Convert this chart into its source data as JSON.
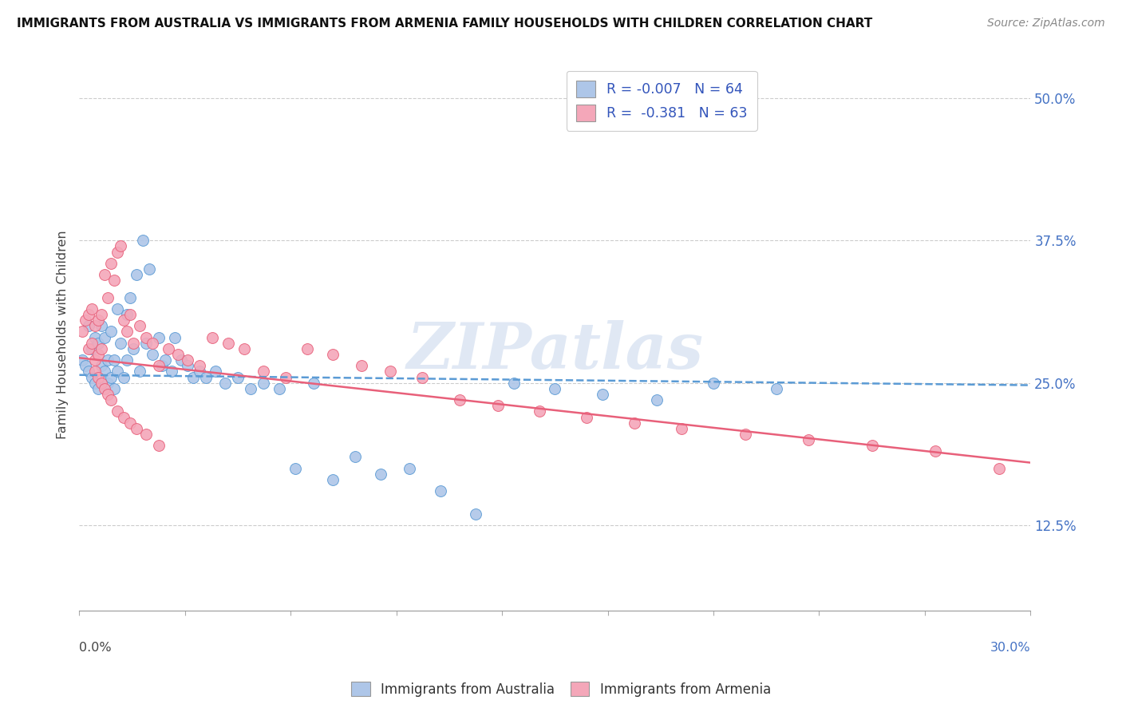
{
  "title": "IMMIGRANTS FROM AUSTRALIA VS IMMIGRANTS FROM ARMENIA FAMILY HOUSEHOLDS WITH CHILDREN CORRELATION CHART",
  "source": "Source: ZipAtlas.com",
  "ylabel": "Family Households with Children",
  "ytick_values": [
    0.125,
    0.25,
    0.375,
    0.5
  ],
  "ytick_labels": [
    "12.5%",
    "25.0%",
    "37.5%",
    "50.0%"
  ],
  "xlim": [
    0.0,
    0.3
  ],
  "ylim": [
    0.05,
    0.535
  ],
  "color_australia": "#aec6e8",
  "color_armenia": "#f4a7b9",
  "line_color_australia": "#5b9bd5",
  "line_color_armenia": "#e8607a",
  "watermark": "ZIPatlas",
  "legend_line1": "R = -0.007   N = 64",
  "legend_line2": "R =  -0.381   N = 63",
  "aus_trend_x": [
    0.0,
    0.3
  ],
  "aus_trend_y": [
    0.257,
    0.248
  ],
  "arm_trend_x": [
    0.0,
    0.3
  ],
  "arm_trend_y": [
    0.272,
    0.18
  ],
  "australia_x": [
    0.001,
    0.002,
    0.003,
    0.003,
    0.004,
    0.004,
    0.005,
    0.005,
    0.006,
    0.006,
    0.007,
    0.007,
    0.008,
    0.008,
    0.009,
    0.009,
    0.01,
    0.01,
    0.011,
    0.011,
    0.012,
    0.012,
    0.013,
    0.014,
    0.015,
    0.015,
    0.016,
    0.017,
    0.018,
    0.019,
    0.02,
    0.021,
    0.022,
    0.023,
    0.025,
    0.026,
    0.027,
    0.029,
    0.03,
    0.032,
    0.034,
    0.036,
    0.038,
    0.04,
    0.043,
    0.046,
    0.05,
    0.054,
    0.058,
    0.063,
    0.068,
    0.074,
    0.08,
    0.087,
    0.095,
    0.104,
    0.114,
    0.125,
    0.137,
    0.15,
    0.165,
    0.182,
    0.2,
    0.22
  ],
  "australia_y": [
    0.27,
    0.265,
    0.3,
    0.26,
    0.28,
    0.255,
    0.29,
    0.25,
    0.285,
    0.245,
    0.3,
    0.265,
    0.29,
    0.26,
    0.27,
    0.25,
    0.295,
    0.255,
    0.27,
    0.245,
    0.315,
    0.26,
    0.285,
    0.255,
    0.31,
    0.27,
    0.325,
    0.28,
    0.345,
    0.26,
    0.375,
    0.285,
    0.35,
    0.275,
    0.29,
    0.265,
    0.27,
    0.26,
    0.29,
    0.27,
    0.265,
    0.255,
    0.26,
    0.255,
    0.26,
    0.25,
    0.255,
    0.245,
    0.25,
    0.245,
    0.175,
    0.25,
    0.165,
    0.185,
    0.17,
    0.175,
    0.155,
    0.135,
    0.25,
    0.245,
    0.24,
    0.235,
    0.25,
    0.245
  ],
  "armenia_x": [
    0.001,
    0.002,
    0.003,
    0.003,
    0.004,
    0.004,
    0.005,
    0.005,
    0.006,
    0.006,
    0.007,
    0.007,
    0.008,
    0.009,
    0.01,
    0.011,
    0.012,
    0.013,
    0.014,
    0.015,
    0.016,
    0.017,
    0.019,
    0.021,
    0.023,
    0.025,
    0.028,
    0.031,
    0.034,
    0.038,
    0.042,
    0.047,
    0.052,
    0.058,
    0.065,
    0.072,
    0.08,
    0.089,
    0.098,
    0.108,
    0.12,
    0.132,
    0.145,
    0.16,
    0.175,
    0.19,
    0.21,
    0.23,
    0.25,
    0.27,
    0.005,
    0.006,
    0.007,
    0.008,
    0.009,
    0.01,
    0.012,
    0.014,
    0.016,
    0.018,
    0.021,
    0.025,
    0.29
  ],
  "armenia_y": [
    0.295,
    0.305,
    0.28,
    0.31,
    0.285,
    0.315,
    0.27,
    0.3,
    0.275,
    0.305,
    0.28,
    0.31,
    0.345,
    0.325,
    0.355,
    0.34,
    0.365,
    0.37,
    0.305,
    0.295,
    0.31,
    0.285,
    0.3,
    0.29,
    0.285,
    0.265,
    0.28,
    0.275,
    0.27,
    0.265,
    0.29,
    0.285,
    0.28,
    0.26,
    0.255,
    0.28,
    0.275,
    0.265,
    0.26,
    0.255,
    0.235,
    0.23,
    0.225,
    0.22,
    0.215,
    0.21,
    0.205,
    0.2,
    0.195,
    0.19,
    0.26,
    0.255,
    0.25,
    0.245,
    0.24,
    0.235,
    0.225,
    0.22,
    0.215,
    0.21,
    0.205,
    0.195,
    0.175
  ]
}
